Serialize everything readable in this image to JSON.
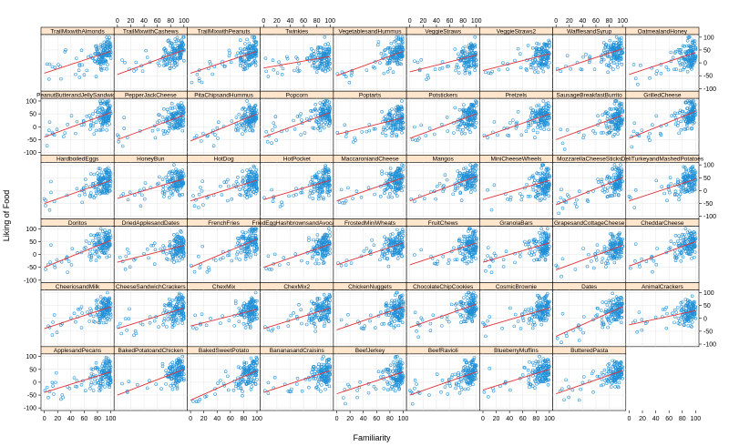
{
  "chart_data": {
    "type": "scatter",
    "layout": "lattice",
    "xlabel": "Familiarity",
    "ylabel": "Liking of Food",
    "xlim": [
      -5,
      105
    ],
    "ylim": [
      -110,
      110
    ],
    "x_ticks": [
      0,
      20,
      40,
      60,
      80,
      100
    ],
    "y_ticks": [
      -100,
      -50,
      0,
      50,
      100
    ],
    "grid": true,
    "point_color": "#1f8fd6",
    "fit_line_color": "#e0333b",
    "strip_color": "#ffe5cc",
    "panels": [
      {
        "name": "TrailMixwithAlmonds",
        "fit": [
          [
            0,
            -40
          ],
          [
            100,
            45
          ]
        ]
      },
      {
        "name": "TrailMixwithCashews",
        "fit": [
          [
            0,
            -45
          ],
          [
            100,
            50
          ]
        ]
      },
      {
        "name": "TrailMixwithPeanuts",
        "fit": [
          [
            0,
            -40
          ],
          [
            100,
            45
          ]
        ]
      },
      {
        "name": "Twinkies",
        "fit": [
          [
            0,
            -20
          ],
          [
            100,
            25
          ]
        ]
      },
      {
        "name": "VegetablesandHummus",
        "fit": [
          [
            0,
            -50
          ],
          [
            100,
            45
          ]
        ]
      },
      {
        "name": "VeggieStraws",
        "fit": [
          [
            0,
            -35
          ],
          [
            100,
            30
          ]
        ]
      },
      {
        "name": "VeggieStraws2",
        "fit": [
          [
            0,
            -30
          ],
          [
            100,
            35
          ]
        ]
      },
      {
        "name": "WafflesandSyrup",
        "fit": [
          [
            0,
            -30
          ],
          [
            100,
            55
          ]
        ]
      },
      {
        "name": "OatmealandHoney",
        "fit": [
          [
            0,
            -45
          ],
          [
            100,
            40
          ]
        ]
      },
      {
        "name": "PeanutButterandJellySandwich",
        "fit": [
          [
            0,
            -40
          ],
          [
            100,
            55
          ]
        ]
      },
      {
        "name": "PepperJackCheese",
        "fit": [
          [
            0,
            -50
          ],
          [
            100,
            45
          ]
        ]
      },
      {
        "name": "PitaChipsandHummus",
        "fit": [
          [
            0,
            -55
          ],
          [
            100,
            50
          ]
        ]
      },
      {
        "name": "Popcorn",
        "fit": [
          [
            0,
            -40
          ],
          [
            100,
            55
          ]
        ]
      },
      {
        "name": "Poptarts",
        "fit": [
          [
            0,
            -30
          ],
          [
            100,
            35
          ]
        ]
      },
      {
        "name": "Potstickers",
        "fit": [
          [
            0,
            -45
          ],
          [
            100,
            50
          ]
        ]
      },
      {
        "name": "Pretzels",
        "fit": [
          [
            0,
            -40
          ],
          [
            100,
            50
          ]
        ]
      },
      {
        "name": "SausageBreakfastBurrito",
        "fit": [
          [
            0,
            -50
          ],
          [
            100,
            45
          ]
        ]
      },
      {
        "name": "GrilledCheese",
        "fit": [
          [
            0,
            -45
          ],
          [
            100,
            60
          ]
        ]
      },
      {
        "name": "HardboiledEggs",
        "fit": [
          [
            0,
            -50
          ],
          [
            100,
            40
          ]
        ]
      },
      {
        "name": "HoneyBun",
        "fit": [
          [
            0,
            -30
          ],
          [
            100,
            45
          ]
        ]
      },
      {
        "name": "HotDog",
        "fit": [
          [
            0,
            -40
          ],
          [
            100,
            40
          ]
        ]
      },
      {
        "name": "HotPocket",
        "fit": [
          [
            0,
            -35
          ],
          [
            100,
            40
          ]
        ]
      },
      {
        "name": "MaccaroniandCheese",
        "fit": [
          [
            0,
            -40
          ],
          [
            100,
            50
          ]
        ]
      },
      {
        "name": "Mangos",
        "fit": [
          [
            0,
            -40
          ],
          [
            100,
            55
          ]
        ]
      },
      {
        "name": "MiniCheeseWheels",
        "fit": [
          [
            0,
            -35
          ],
          [
            100,
            40
          ]
        ]
      },
      {
        "name": "MozzarellaCheeseSticks",
        "fit": [
          [
            0,
            -55
          ],
          [
            100,
            50
          ]
        ]
      },
      {
        "name": "DeliTurkeyandMashedPotatoes",
        "fit": [
          [
            0,
            -40
          ],
          [
            100,
            45
          ]
        ]
      },
      {
        "name": "Doritos",
        "fit": [
          [
            0,
            -50
          ],
          [
            100,
            55
          ]
        ]
      },
      {
        "name": "DriedApplesandDates",
        "fit": [
          [
            0,
            -30
          ],
          [
            100,
            35
          ]
        ]
      },
      {
        "name": "FrenchFries",
        "fit": [
          [
            0,
            -50
          ],
          [
            100,
            60
          ]
        ]
      },
      {
        "name": "FriedEggHashbrownsandAvocado",
        "fit": [
          [
            0,
            -50
          ],
          [
            100,
            40
          ]
        ]
      },
      {
        "name": "FrostedMiniWheats",
        "fit": [
          [
            0,
            -40
          ],
          [
            100,
            45
          ]
        ]
      },
      {
        "name": "FruitChews",
        "fit": [
          [
            0,
            -40
          ],
          [
            100,
            45
          ]
        ]
      },
      {
        "name": "GranolaBars",
        "fit": [
          [
            0,
            -30
          ],
          [
            100,
            45
          ]
        ]
      },
      {
        "name": "GrapesandCottageCheese",
        "fit": [
          [
            0,
            -60
          ],
          [
            100,
            35
          ]
        ]
      },
      {
        "name": "CheddarCheese",
        "fit": [
          [
            0,
            -45
          ],
          [
            100,
            50
          ]
        ]
      },
      {
        "name": "CheeriosandMilk",
        "fit": [
          [
            0,
            -40
          ],
          [
            100,
            45
          ]
        ]
      },
      {
        "name": "CheeseSandwichCrackers",
        "fit": [
          [
            0,
            -40
          ],
          [
            100,
            40
          ]
        ]
      },
      {
        "name": "ChexMix",
        "fit": [
          [
            0,
            -30
          ],
          [
            100,
            35
          ]
        ]
      },
      {
        "name": "ChexMix2",
        "fit": [
          [
            0,
            -40
          ],
          [
            100,
            40
          ]
        ]
      },
      {
        "name": "ChickenNuggets",
        "fit": [
          [
            0,
            -45
          ],
          [
            100,
            45
          ]
        ]
      },
      {
        "name": "ChocolateChipCookies",
        "fit": [
          [
            0,
            -35
          ],
          [
            100,
            55
          ]
        ]
      },
      {
        "name": "CosmicBrownie",
        "fit": [
          [
            0,
            -35
          ],
          [
            100,
            40
          ]
        ]
      },
      {
        "name": "Dates",
        "fit": [
          [
            0,
            -70
          ],
          [
            100,
            45
          ]
        ]
      },
      {
        "name": "AnimalCrackers",
        "fit": [
          [
            0,
            -25
          ],
          [
            100,
            30
          ]
        ]
      },
      {
        "name": "ApplesandPecans",
        "fit": [
          [
            0,
            -40
          ],
          [
            100,
            40
          ]
        ]
      },
      {
        "name": "BakedPotatoandChicken",
        "fit": [
          [
            0,
            -50
          ],
          [
            100,
            50
          ]
        ]
      },
      {
        "name": "BakedSweetPotato",
        "fit": [
          [
            0,
            -70
          ],
          [
            100,
            45
          ]
        ]
      },
      {
        "name": "BananasandCraisins",
        "fit": [
          [
            0,
            -40
          ],
          [
            100,
            45
          ]
        ]
      },
      {
        "name": "BeefJerkey",
        "fit": [
          [
            0,
            -45
          ],
          [
            100,
            40
          ]
        ]
      },
      {
        "name": "BeefRavioli",
        "fit": [
          [
            0,
            -50
          ],
          [
            100,
            40
          ]
        ]
      },
      {
        "name": "BlueberryMuffins",
        "fit": [
          [
            0,
            -30
          ],
          [
            100,
            50
          ]
        ]
      },
      {
        "name": "ButteredPasta",
        "fit": [
          [
            0,
            -45
          ],
          [
            100,
            45
          ]
        ]
      }
    ]
  }
}
